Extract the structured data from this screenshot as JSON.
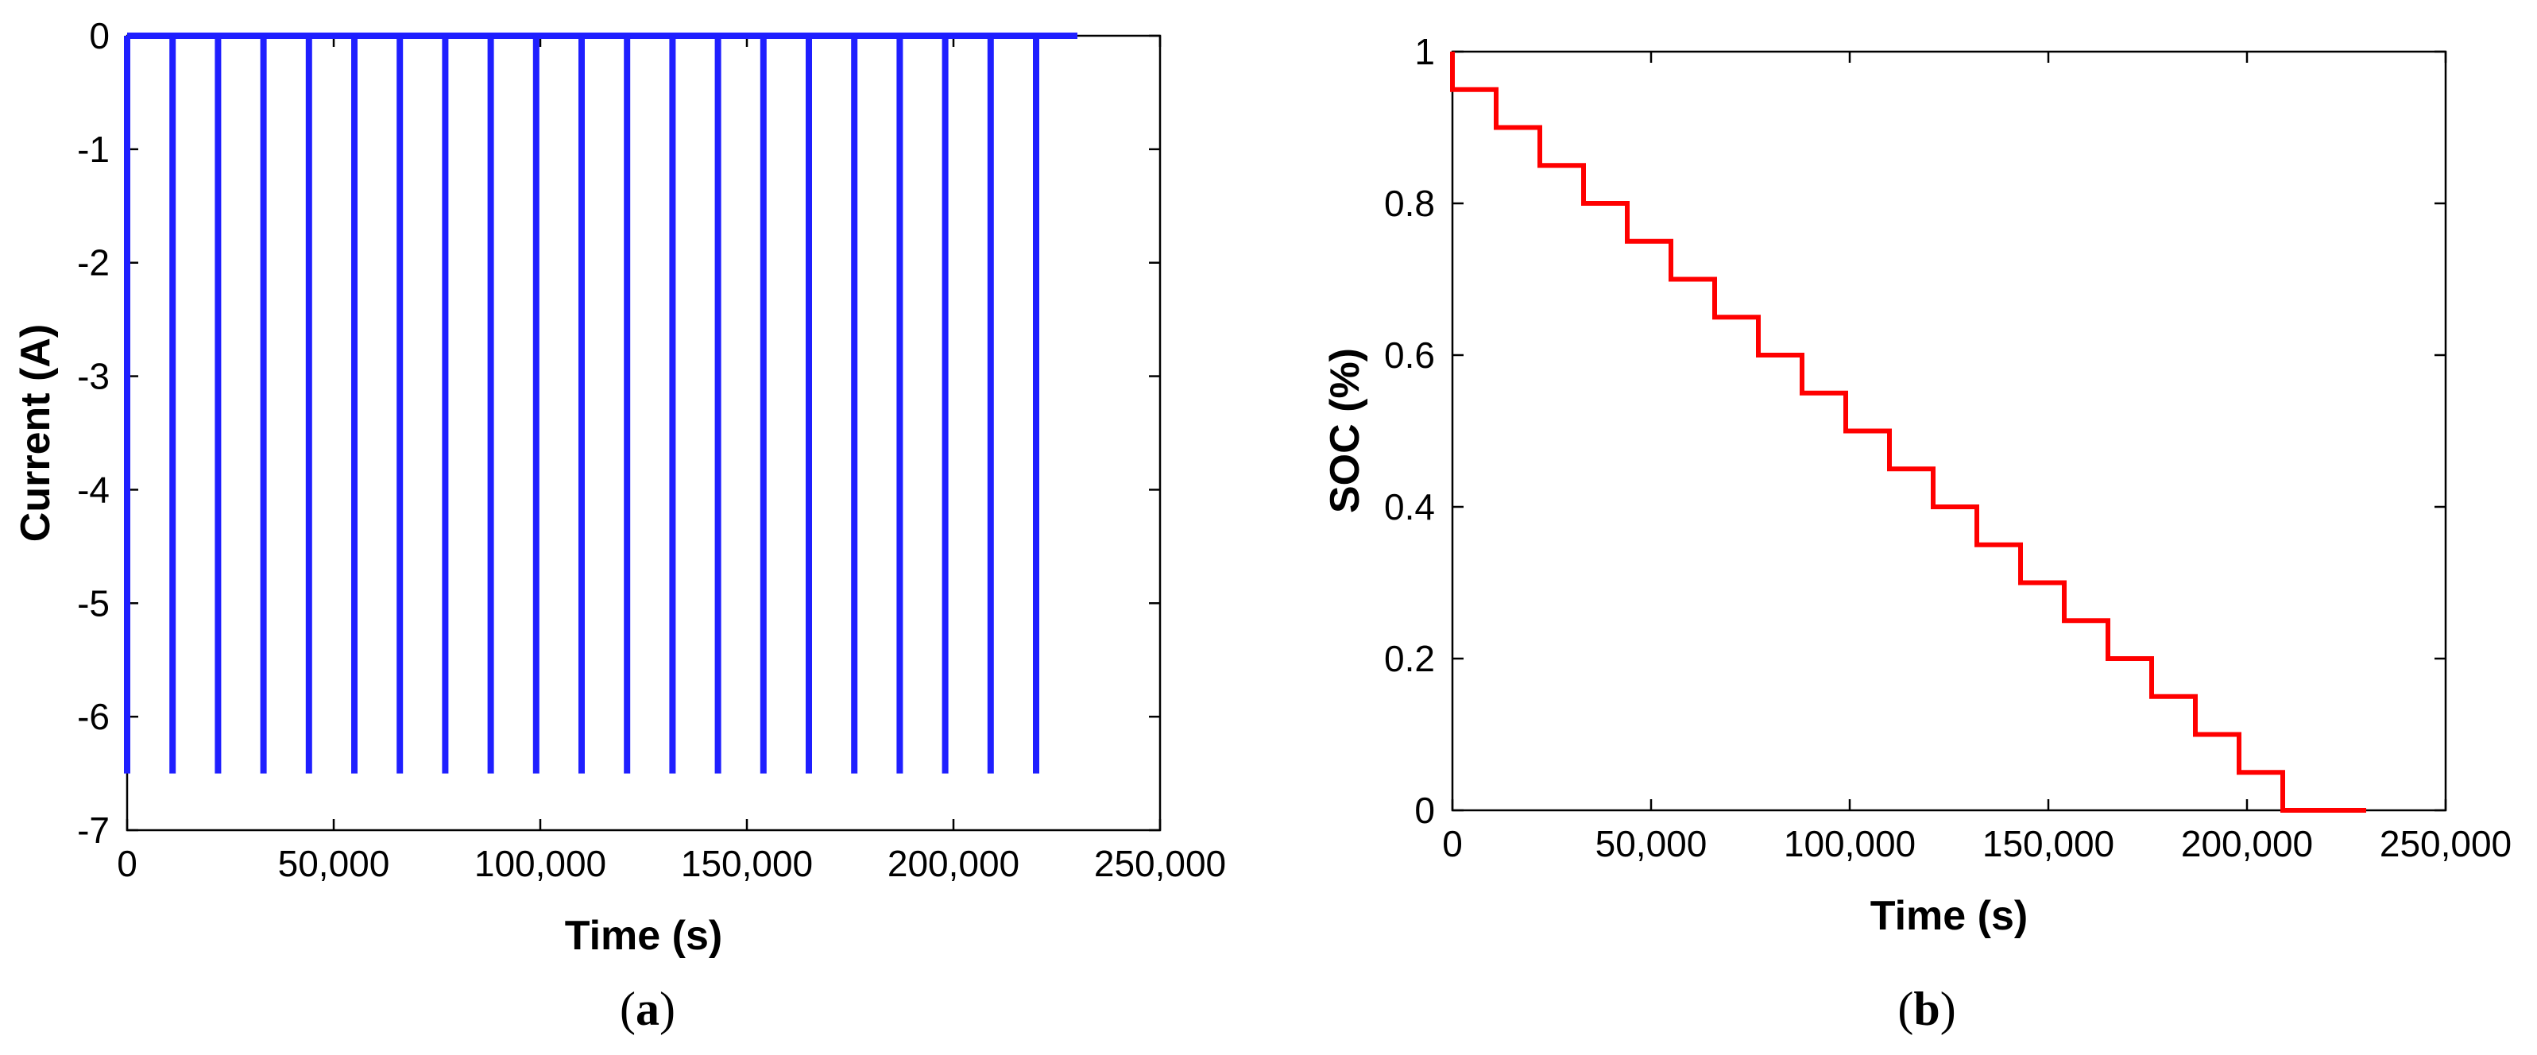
{
  "chart_data": [
    {
      "panel_label": "a",
      "type": "line",
      "xlabel": "Time (s)",
      "ylabel": "Current (A)",
      "xlim": [
        0,
        250000
      ],
      "ylim": [
        -7,
        0
      ],
      "xticks": [
        0,
        50000,
        100000,
        150000,
        200000,
        250000
      ],
      "xtick_labels": [
        "0",
        "50,000",
        "100,000",
        "150,000",
        "200,000",
        "250,000"
      ],
      "yticks": [
        0,
        -1,
        -2,
        -3,
        -4,
        -5,
        -6,
        -7
      ],
      "ytick_labels": [
        "0",
        "-1",
        "-2",
        "-3",
        "-4",
        "-5",
        "-6",
        "-7"
      ],
      "grid": false,
      "series": [
        {
          "color": "#1f1fff",
          "pulse_current": -6.5,
          "rest_current": 0,
          "pulse_times": [
            0,
            11000,
            22000,
            33000,
            44000,
            55000,
            66000,
            77000,
            88000,
            99000,
            110000,
            121000,
            132000,
            143000,
            154000,
            165000,
            176000,
            187000,
            198000,
            209000,
            220000
          ],
          "end_time": 230000
        }
      ]
    },
    {
      "panel_label": "b",
      "type": "line",
      "xlabel": "Time (s)",
      "ylabel": "SOC (%)",
      "xlim": [
        0,
        250000
      ],
      "ylim": [
        0,
        1
      ],
      "xticks": [
        0,
        50000,
        100000,
        150000,
        200000,
        250000
      ],
      "xtick_labels": [
        "0",
        "50,000",
        "100,000",
        "150,000",
        "200,000",
        "250,000"
      ],
      "yticks": [
        0,
        0.2,
        0.4,
        0.6,
        0.8,
        1
      ],
      "ytick_labels": [
        "0",
        "0.2",
        "0.4",
        "0.6",
        "0.8",
        "1"
      ],
      "grid": false,
      "series": [
        {
          "color": "#ff0000",
          "x": [
            0,
            0,
            11000,
            11000,
            22000,
            22000,
            33000,
            33000,
            44000,
            44000,
            55000,
            55000,
            66000,
            66000,
            77000,
            77000,
            88000,
            88000,
            99000,
            99000,
            110000,
            110000,
            121000,
            121000,
            132000,
            132000,
            143000,
            143000,
            154000,
            154000,
            165000,
            165000,
            176000,
            176000,
            187000,
            187000,
            198000,
            198000,
            209000,
            209000,
            220000,
            220000,
            230000
          ],
          "y": [
            1,
            0.95,
            0.95,
            0.9,
            0.9,
            0.85,
            0.85,
            0.8,
            0.8,
            0.75,
            0.75,
            0.7,
            0.7,
            0.65,
            0.65,
            0.6,
            0.6,
            0.55,
            0.55,
            0.5,
            0.5,
            0.45,
            0.45,
            0.4,
            0.4,
            0.35,
            0.35,
            0.3,
            0.3,
            0.25,
            0.25,
            0.2,
            0.2,
            0.15,
            0.15,
            0.1,
            0.1,
            0.05,
            0.05,
            0.0,
            0.0,
            0.0,
            0.0
          ]
        }
      ]
    }
  ]
}
